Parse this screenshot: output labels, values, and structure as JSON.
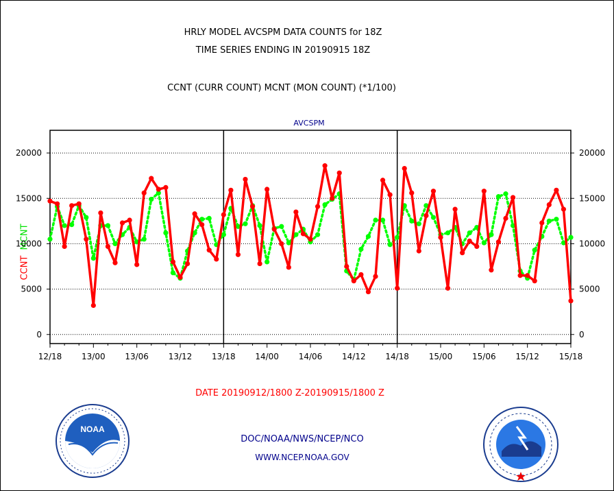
{
  "chart_data": {
    "type": "line",
    "title_lines": [
      "HRLY MODEL AVCSPM DATA COUNTS for 18Z",
      "TIME SERIES ENDING IN 20190915 18Z"
    ],
    "subtitle": "CCNT (CURR COUNT) MCNT (MON COUNT) (*1/100)",
    "panel_label": "AVCSPM",
    "xlabel": "DATE 20190912/1800 Z-20190915/1800 Z",
    "ylabel": {
      "ccnt": "CCNT",
      "mcnt": "MCNT"
    },
    "ylim": [
      -1000,
      22500
    ],
    "yticks": [
      0,
      5000,
      10000,
      15000,
      20000
    ],
    "xlim": [
      0,
      72
    ],
    "xticks": [
      {
        "x": 0,
        "label": "12/18"
      },
      {
        "x": 6,
        "label": "13/00"
      },
      {
        "x": 12,
        "label": "13/06"
      },
      {
        "x": 18,
        "label": "13/12"
      },
      {
        "x": 24,
        "label": "13/18"
      },
      {
        "x": 30,
        "label": "14/00"
      },
      {
        "x": 36,
        "label": "14/06"
      },
      {
        "x": 42,
        "label": "14/12"
      },
      {
        "x": 48,
        "label": "14/18"
      },
      {
        "x": 54,
        "label": "15/00"
      },
      {
        "x": 60,
        "label": "15/06"
      },
      {
        "x": 66,
        "label": "15/12"
      },
      {
        "x": 72,
        "label": "15/18"
      }
    ],
    "day_dividers": [
      24,
      48
    ],
    "grid": true,
    "series": [
      {
        "name": "CCNT",
        "color": "#ff0000",
        "style": "solid",
        "values": [
          14700,
          14400,
          9700,
          14200,
          14400,
          10500,
          3200,
          13400,
          9700,
          7900,
          12300,
          12600,
          7700,
          15600,
          17200,
          16000,
          16200,
          8000,
          6300,
          7800,
          13300,
          12100,
          9300,
          8300,
          13200,
          15900,
          8800,
          17100,
          14100,
          7800,
          16000,
          11600,
          10000,
          7400,
          13500,
          11100,
          10500,
          14100,
          18600,
          15000,
          17800,
          7500,
          5900,
          6600,
          4700,
          6400,
          17000,
          15400,
          5100,
          18300,
          15600,
          9200,
          13100,
          15800,
          10700,
          5100,
          13800,
          9000,
          10300,
          9700,
          15800,
          7100,
          10200,
          12800,
          15100,
          6500,
          6500,
          5900,
          12300,
          14300,
          15900,
          13800,
          3700
        ]
      },
      {
        "name": "MCNT",
        "color": "#00ff00",
        "style": "dotted",
        "values": [
          10500,
          14100,
          12000,
          12100,
          14200,
          12900,
          8400,
          12000,
          12000,
          10000,
          11000,
          11800,
          10200,
          10500,
          14900,
          15600,
          11200,
          6800,
          6200,
          9200,
          11200,
          12700,
          12800,
          9900,
          11000,
          13900,
          11900,
          12200,
          14200,
          12000,
          8000,
          11700,
          11900,
          10100,
          11000,
          11600,
          10200,
          11000,
          14300,
          14900,
          15500,
          7000,
          6000,
          9400,
          10800,
          12600,
          12600,
          9900,
          10700,
          14200,
          12500,
          12200,
          14200,
          12900,
          11000,
          11200,
          11800,
          10000,
          11200,
          11800,
          10100,
          11000,
          15200,
          15500,
          12000,
          7000,
          6200,
          9300,
          10800,
          12500,
          12700,
          10100,
          10700
        ]
      }
    ]
  },
  "logos": {
    "left": {
      "name": "NOAA",
      "text": "NOAA"
    },
    "right": {
      "name": "National Weather Service"
    }
  },
  "footer": {
    "org": "DOC/NOAA/NWS/NCEP/NCO",
    "url": "WWW.NCEP.NOAA.GOV"
  }
}
